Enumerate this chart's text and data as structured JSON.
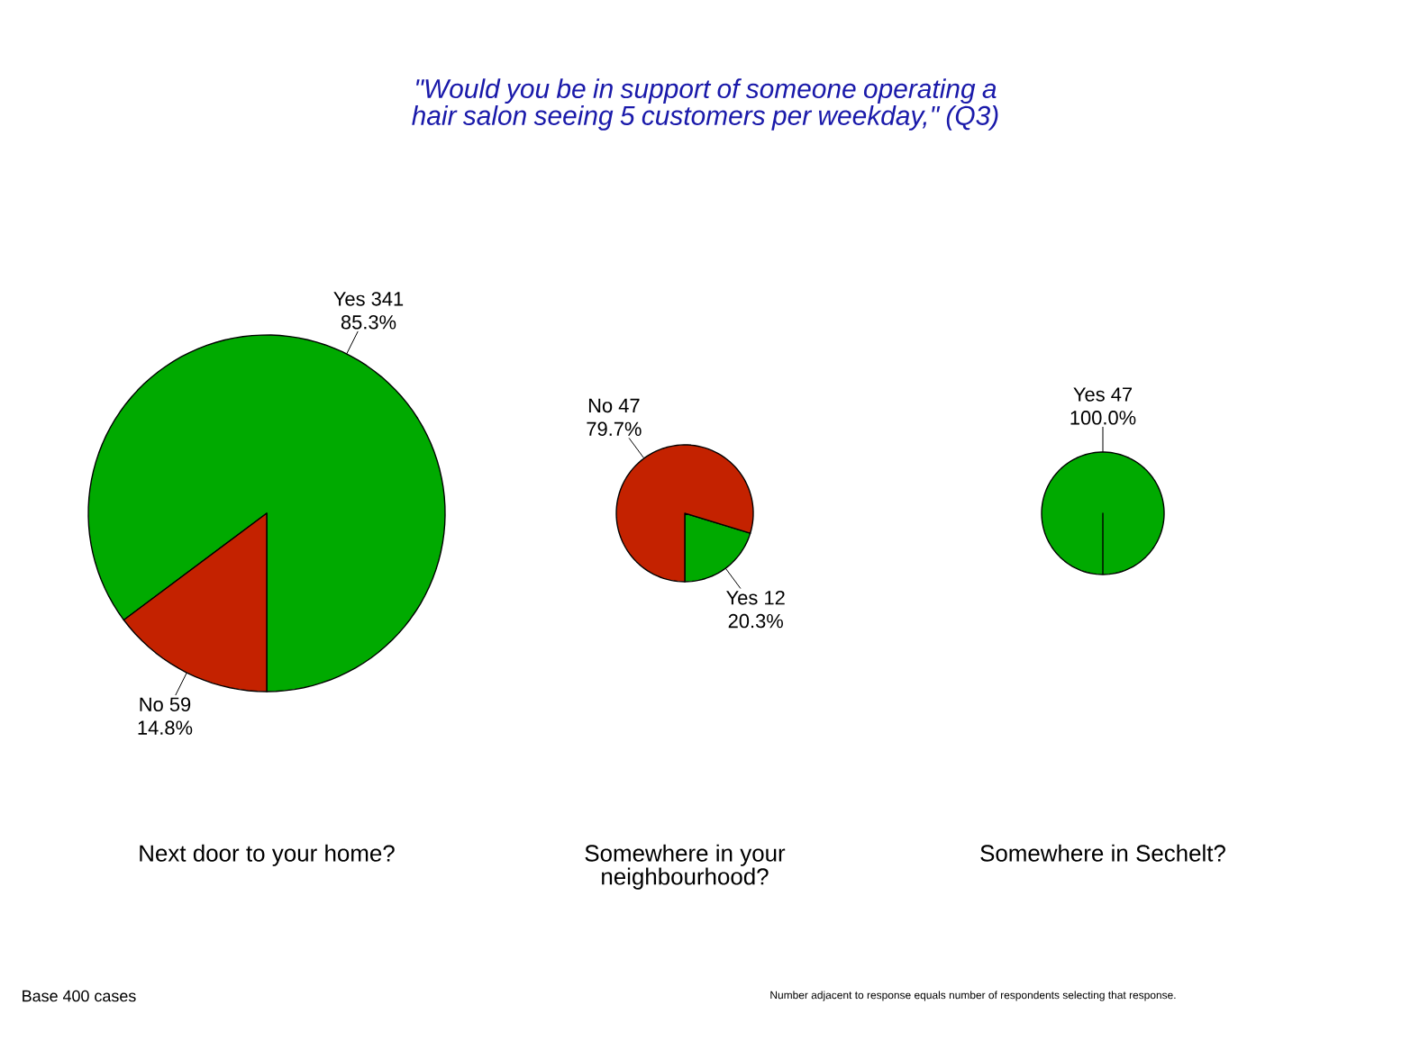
{
  "chart_data": [
    {
      "type": "pie",
      "title": "\"Would you be in support of someone operating a hair salon seeing 5 customers per weekday,\" (Q3)",
      "xlabel": "Next door to your home?",
      "categories": [
        "Yes 341",
        "No 59"
      ],
      "values": [
        85.3,
        14.8
      ],
      "value_labels": [
        "85.3%",
        "14.8%"
      ],
      "colors": [
        "#00aa00",
        "#c42200"
      ],
      "annotations": [
        "Base 400 cases",
        "Number adjacent to response equals number of respondents selecting that response."
      ]
    },
    {
      "type": "pie",
      "xlabel": "Somewhere in your neighbourhood?",
      "categories": [
        "Yes 12",
        "No 47"
      ],
      "values": [
        20.3,
        79.7
      ],
      "value_labels": [
        "20.3%",
        "79.7%"
      ],
      "colors": [
        "#00aa00",
        "#c42200"
      ]
    },
    {
      "type": "pie",
      "xlabel": "Somewhere in Sechelt?",
      "categories": [
        "Yes 47"
      ],
      "values": [
        100.0
      ],
      "value_labels": [
        "100.0%"
      ],
      "colors": [
        "#00aa00"
      ]
    }
  ]
}
